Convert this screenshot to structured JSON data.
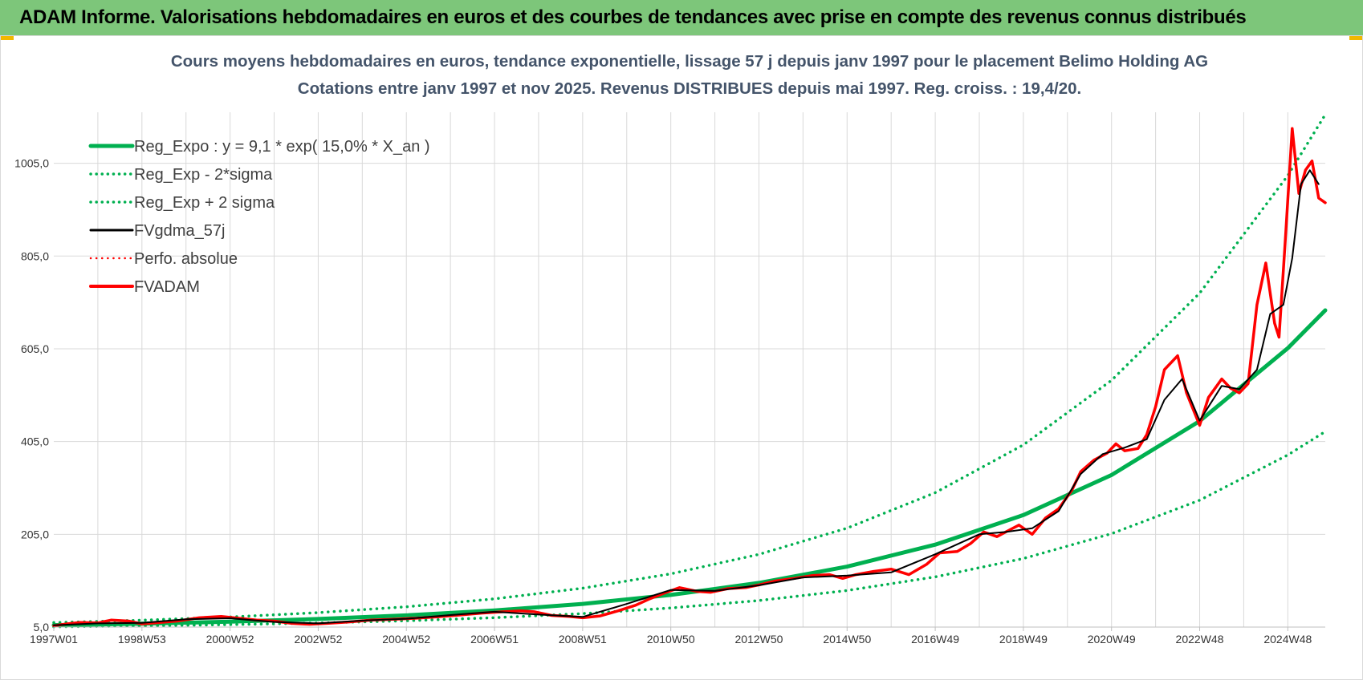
{
  "banner": {
    "title": "ADAM Informe. Valorisations hebdomadaires en euros et des courbes de tendances avec prise en compte des revenus connus distribués"
  },
  "colors": {
    "banner_bg": "#7dc67a",
    "reg_green": "#00b050",
    "dotted_green": "#00b050",
    "gdma_black": "#000000",
    "fvadam_red": "#ff0000",
    "grid": "#d9d9d9"
  },
  "chart_data": {
    "type": "line",
    "title": [
      "Cours moyens hebdomadaires en euros, tendance exponentielle, lissage 57 j depuis janv 1997 pour le placement Belimo Holding AG",
      "Cotations entre janv 1997 et nov 2025. Revenus DISTRIBUES depuis mai 1997. Reg. croiss. : 19,4/20."
    ],
    "xlabel": "",
    "ylabel": "",
    "xlim": [
      1997.0,
      2025.85
    ],
    "ylim": [
      5,
      1115
    ],
    "y_ticks": [
      "5,0",
      "205,0",
      "405,0",
      "605,0",
      "805,0",
      "1005,0"
    ],
    "y_tick_values": [
      5,
      205,
      405,
      605,
      805,
      1005
    ],
    "x_ticks": [
      "1997W01",
      "1998W53",
      "2000W52",
      "2002W52",
      "2004W52",
      "2006W51",
      "2008W51",
      "2010W50",
      "2012W50",
      "2014W50",
      "2016W49",
      "2018W49",
      "2020W49",
      "2022W48",
      "2024W48"
    ],
    "x_tick_values": [
      1997.0,
      1999.0,
      2001.0,
      2003.0,
      2005.0,
      2007.0,
      2009.0,
      2011.0,
      2013.0,
      2015.0,
      2017.0,
      2019.0,
      2021.0,
      2023.0,
      2025.0
    ],
    "legend": [
      {
        "label": "Reg_Expo : y = 9,1 * exp( 15,0% *  X_an )",
        "style": "solid",
        "color": "#00b050",
        "width": 5
      },
      {
        "label": "Reg_Exp - 2*sigma",
        "style": "dotted",
        "color": "#00b050",
        "width": 3.5
      },
      {
        "label": "Reg_Exp + 2 sigma",
        "style": "dotted",
        "color": "#00b050",
        "width": 3.5
      },
      {
        "label": "FVgdma_57j",
        "style": "solid",
        "color": "#000000",
        "width": 3
      },
      {
        "label": "Perfo. absolue",
        "style": "dotted",
        "color": "#ff0000",
        "width": 2.5
      },
      {
        "label": "FVADAM",
        "style": "solid",
        "color": "#ff0000",
        "width": 4
      }
    ],
    "series": [
      {
        "name": "Reg_Expo",
        "style": "solid",
        "color": "#00b050",
        "formula": "9.1*exp(0.15*X_an)",
        "x": [
          1997,
          1999,
          2001,
          2003,
          2005,
          2007,
          2009,
          2011,
          2013,
          2015,
          2017,
          2019,
          2021,
          2023,
          2025,
          2025.85
        ],
        "values": [
          9.1,
          12.3,
          16.6,
          22.4,
          30.2,
          40.8,
          55.0,
          74.3,
          100.3,
          135.3,
          182.7,
          246.6,
          332.8,
          449.2,
          606.4,
          688.0
        ]
      },
      {
        "name": "Reg_Exp - 2*sigma",
        "style": "dotted",
        "color": "#00b050",
        "x": [
          1997,
          1999,
          2001,
          2003,
          2005,
          2007,
          2009,
          2011,
          2013,
          2015,
          2017,
          2019,
          2021,
          2023,
          2025,
          2025.85
        ],
        "values": [
          5.6,
          7.6,
          10.3,
          13.9,
          18.7,
          25.3,
          34.1,
          46.1,
          62.2,
          83.9,
          113.3,
          152.9,
          206.4,
          278.5,
          376.0,
          426.6
        ]
      },
      {
        "name": "Reg_Exp + 2 sigma",
        "style": "dotted",
        "color": "#00b050",
        "x": [
          1997,
          1999,
          2001,
          2003,
          2005,
          2007,
          2009,
          2011,
          2013,
          2015,
          2017,
          2019,
          2021,
          2023,
          2025,
          2025.85
        ],
        "values": [
          14.7,
          19.8,
          26.8,
          36.1,
          48.7,
          65.8,
          88.8,
          119.8,
          161.8,
          218.3,
          294.7,
          397.8,
          537.0,
          724.9,
          978.5,
          1110.0
        ]
      },
      {
        "name": "FVADAM",
        "style": "solid",
        "color": "#ff0000",
        "x": [
          1997.0,
          1997.3,
          1997.6,
          1998.0,
          1998.3,
          1998.7,
          1999.0,
          1999.4,
          1999.8,
          2000.3,
          2000.8,
          2001.2,
          2001.6,
          2002.0,
          2002.4,
          2002.8,
          2003.2,
          2003.7,
          2004.2,
          2004.7,
          2005.2,
          2005.7,
          2006.2,
          2006.7,
          2007.2,
          2007.6,
          2007.9,
          2008.3,
          2008.7,
          2009.0,
          2009.4,
          2009.8,
          2010.2,
          2010.5,
          2010.9,
          2011.2,
          2011.6,
          2011.9,
          2012.3,
          2012.7,
          2013.0,
          2013.4,
          2013.8,
          2014.2,
          2014.6,
          2014.9,
          2015.2,
          2015.6,
          2016.0,
          2016.4,
          2016.8,
          2017.1,
          2017.5,
          2017.8,
          2018.1,
          2018.4,
          2018.7,
          2018.9,
          2019.2,
          2019.5,
          2019.8,
          2020.1,
          2020.3,
          2020.6,
          2020.9,
          2021.1,
          2021.3,
          2021.6,
          2021.8,
          2022.0,
          2022.2,
          2022.5,
          2022.7,
          2023.0,
          2023.2,
          2023.5,
          2023.7,
          2023.9,
          2024.1,
          2024.3,
          2024.5,
          2024.7,
          2024.8,
          2024.95,
          2025.1,
          2025.25,
          2025.4,
          2025.55,
          2025.7,
          2025.85
        ],
        "values": [
          8,
          12,
          15,
          14,
          20,
          18,
          12,
          15,
          18,
          25,
          28,
          24,
          20,
          18,
          13,
          11,
          13,
          16,
          20,
          22,
          24,
          27,
          31,
          35,
          38,
          40,
          38,
          30,
          28,
          25,
          29,
          40,
          52,
          65,
          80,
          90,
          82,
          80,
          88,
          90,
          96,
          105,
          110,
          116,
          118,
          110,
          118,
          125,
          130,
          118,
          140,
          165,
          168,
          185,
          210,
          200,
          215,
          225,
          205,
          240,
          260,
          300,
          340,
          365,
          380,
          400,
          385,
          390,
          420,
          480,
          560,
          590,
          510,
          440,
          500,
          540,
          520,
          510,
          530,
          700,
          790,
          660,
          630,
          850,
          1080,
          940,
          990,
          1010,
          930,
          920
        ]
      },
      {
        "name": "FVgdma_57j",
        "style": "solid",
        "color": "#000000",
        "x": [
          1997.0,
          1998.0,
          1999.0,
          2000.0,
          2001.0,
          2002.0,
          2003.0,
          2004.0,
          2005.0,
          2006.0,
          2007.0,
          2008.0,
          2009.0,
          2010.0,
          2011.0,
          2012.0,
          2013.0,
          2014.0,
          2015.0,
          2016.0,
          2017.0,
          2018.0,
          2018.6,
          2019.2,
          2019.8,
          2020.3,
          2020.8,
          2021.3,
          2021.8,
          2022.2,
          2022.6,
          2023.0,
          2023.5,
          2023.9,
          2024.3,
          2024.6,
          2024.9,
          2025.1,
          2025.3,
          2025.5,
          2025.7
        ],
        "values": [
          9,
          13,
          14,
          22,
          24,
          16,
          13,
          19,
          23,
          31,
          38,
          32,
          27,
          55,
          85,
          83,
          95,
          112,
          116,
          123,
          162,
          205,
          210,
          218,
          255,
          335,
          378,
          392,
          410,
          495,
          540,
          450,
          525,
          518,
          560,
          680,
          700,
          800,
          960,
          990,
          960
        ]
      },
      {
        "name": "Perfo. absolue",
        "style": "dotted",
        "color": "#ff0000",
        "x": [],
        "values": []
      }
    ]
  }
}
